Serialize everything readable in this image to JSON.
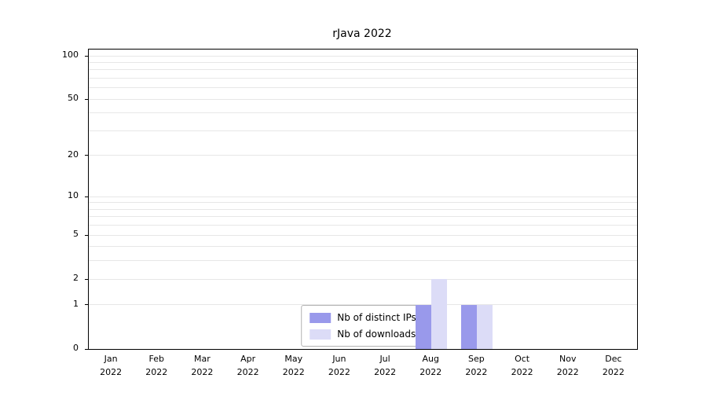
{
  "chart_data": {
    "type": "bar",
    "title": "rJava 2022",
    "categories": [
      "Jan 2022",
      "Feb 2022",
      "Mar 2022",
      "Apr 2022",
      "May 2022",
      "Jun 2022",
      "Jul 2022",
      "Aug 2022",
      "Sep 2022",
      "Oct 2022",
      "Nov 2022",
      "Dec 2022"
    ],
    "x_tick_months": [
      "Jan",
      "Feb",
      "Mar",
      "Apr",
      "May",
      "Jun",
      "Jul",
      "Aug",
      "Sep",
      "Oct",
      "Nov",
      "Dec"
    ],
    "x_tick_year": "2022",
    "series": [
      {
        "name": "Nb of distinct IPs",
        "color": "#9999eb",
        "values": [
          0,
          0,
          0,
          0,
          0,
          0,
          0,
          1,
          1,
          0,
          0,
          0
        ]
      },
      {
        "name": "Nb of downloads",
        "color": "#dcdcf7",
        "values": [
          0,
          0,
          0,
          0,
          0,
          0,
          0,
          2,
          1,
          0,
          0,
          0
        ]
      }
    ],
    "xlabel": "",
    "ylabel": "",
    "y_axis": {
      "scale": "log1p",
      "range": [
        0,
        100
      ],
      "max": 100,
      "tick_values": [
        0,
        1,
        2,
        5,
        10,
        20,
        50,
        100
      ],
      "gridline_values": [
        1,
        2,
        3,
        4,
        5,
        6,
        7,
        8,
        9,
        10,
        20,
        30,
        40,
        50,
        60,
        70,
        80,
        90,
        100
      ]
    },
    "grid": true,
    "legend": {
      "position": "bottom-center",
      "entries": [
        "Nb of distinct IPs",
        "Nb of downloads"
      ]
    }
  }
}
